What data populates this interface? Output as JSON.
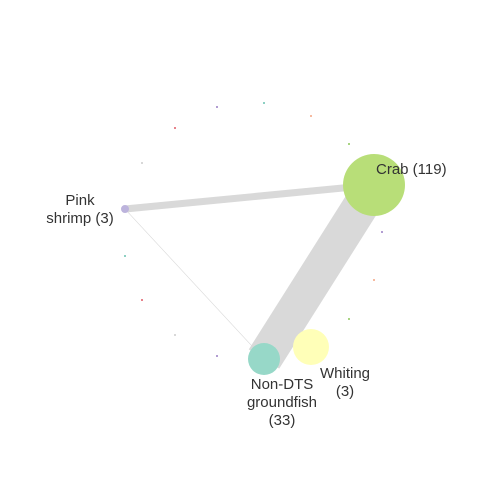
{
  "network": {
    "nodes": [
      {
        "id": "crab",
        "label_lines": [
          "Crab (119)"
        ],
        "color": "#b8de78"
      },
      {
        "id": "pink",
        "label_lines": [
          "Pink",
          "shrimp (3)"
        ],
        "color": "#bcb3dc"
      },
      {
        "id": "nondts",
        "label_lines": [
          "Non-DTS",
          "groundfish",
          "(33)"
        ],
        "color": "#97d8c8"
      },
      {
        "id": "whiting",
        "label_lines": [
          "Whiting",
          "(3)"
        ],
        "color": "#ffffb8"
      }
    ],
    "edges": [
      {
        "from": "pink",
        "to": "crab",
        "weight": 3
      },
      {
        "from": "crab",
        "to": "nondts",
        "weight": 33
      },
      {
        "from": "pink",
        "to": "nondts",
        "weight": 0.2
      }
    ],
    "edge_color": "#d9d9d9",
    "dot_colors": [
      "#9a7ec3",
      "#69c1b0",
      "#f4a582",
      "#e05a66",
      "#8cc65a",
      "#cccccc"
    ]
  }
}
